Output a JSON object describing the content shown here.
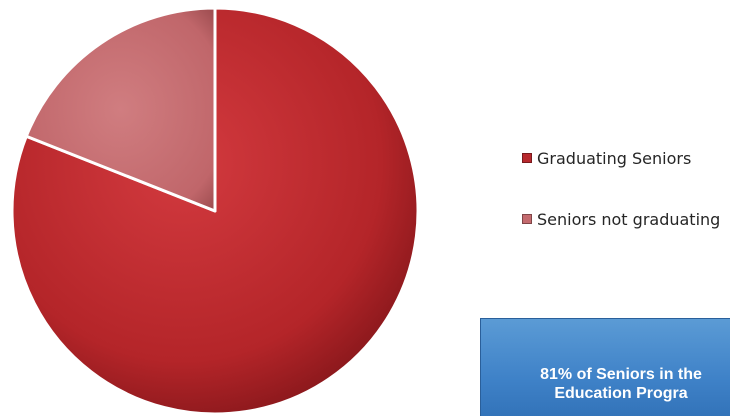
{
  "chart_data": {
    "type": "pie",
    "title": "",
    "series": [
      {
        "values": [
          81,
          19
        ]
      }
    ],
    "categories": [
      "Graduating Seniors",
      "Seniors not graduating"
    ],
    "colors": [
      "#b8282d",
      "#c46a6e"
    ],
    "legend_position": "right"
  },
  "legend": {
    "items": [
      {
        "label": "Graduating Seniors",
        "color": "#b8282d"
      },
      {
        "label": "Seniors not graduating",
        "color": "#c46a6e"
      }
    ]
  },
  "callout": {
    "line1": "81% of Seniors in the",
    "line2": "Education Progra"
  }
}
